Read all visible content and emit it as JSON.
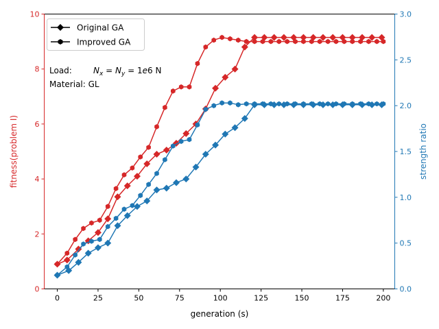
{
  "chart_data": {
    "type": "line",
    "xlabel": "generation (s)",
    "ylabel_left": "fitness(problem I)",
    "ylabel_right": "strength ratio",
    "xlim": [
      -8,
      207
    ],
    "ylim_left": [
      0,
      10
    ],
    "ylim_right": [
      0,
      3
    ],
    "x_ticks": [
      0,
      25,
      50,
      75,
      100,
      125,
      150,
      175,
      200
    ],
    "y_ticks_left": [
      0,
      2,
      4,
      6,
      8,
      10
    ],
    "y_ticks_right": [
      0.0,
      0.5,
      1.0,
      1.5,
      2.0,
      2.5,
      3.0
    ],
    "y_tick_labels_right": [
      "0.0",
      "0.5",
      "1.0",
      "1.5",
      "2.0",
      "2.5",
      "3.0"
    ],
    "colors": {
      "left": "#d62728",
      "right": "#1f77b4",
      "axes": "#000000"
    },
    "legend": {
      "position": "top-left",
      "entries": [
        {
          "label": "Original GA",
          "marker": "diamond"
        },
        {
          "label": "Improved GA",
          "marker": "hexagon"
        }
      ]
    },
    "annotations": {
      "load_prefix": "Load:",
      "load_formula": "N_x = N_y = 1e6 N",
      "load_x": "N",
      "load_sub_x": "x",
      "load_eq1": " = ",
      "load_y": "N",
      "load_sub_y": "y",
      "load_eq2": " = 1",
      "load_e": "e",
      "load_num": "6 N",
      "material": "Material: GL"
    },
    "series": [
      {
        "name": "Original GA",
        "axis": "left",
        "marker": "diamond",
        "x": [
          0,
          6,
          13,
          19,
          25,
          31,
          37,
          43,
          49,
          55,
          61,
          67,
          73,
          79,
          85,
          91,
          97,
          103,
          109,
          115,
          121,
          127,
          133,
          139,
          145,
          151,
          157,
          163,
          169,
          175,
          181,
          187,
          193,
          199
        ],
        "y": [
          0.9,
          1.05,
          1.45,
          1.75,
          2.05,
          2.55,
          3.35,
          3.75,
          4.1,
          4.55,
          4.9,
          5.05,
          5.3,
          5.65,
          6.0,
          6.55,
          7.3,
          7.7,
          8.0,
          8.8,
          9.15,
          9.15,
          9.15,
          9.15,
          9.15,
          9.15,
          9.15,
          9.15,
          9.15,
          9.15,
          9.15,
          9.15,
          9.15,
          9.15
        ]
      },
      {
        "name": "Improved GA",
        "axis": "left",
        "marker": "hexagon",
        "x": [
          0,
          6,
          11,
          16,
          21,
          26,
          31,
          36,
          41,
          46,
          51,
          56,
          61,
          66,
          71,
          76,
          81,
          86,
          91,
          96,
          101,
          106,
          111,
          116,
          121,
          126,
          131,
          136,
          141,
          146,
          151,
          156,
          161,
          166,
          171,
          176,
          181,
          186,
          191,
          196,
          200
        ],
        "y": [
          0.9,
          1.3,
          1.8,
          2.2,
          2.4,
          2.5,
          3.0,
          3.65,
          4.15,
          4.4,
          4.8,
          5.15,
          5.9,
          6.6,
          7.2,
          7.35,
          7.35,
          8.2,
          8.8,
          9.05,
          9.15,
          9.1,
          9.05,
          9.0,
          9.0,
          9.0,
          9.0,
          9.0,
          9.0,
          9.0,
          9.0,
          9.0,
          9.0,
          9.0,
          9.0,
          9.0,
          9.0,
          9.0,
          9.0,
          9.0,
          9.0
        ]
      },
      {
        "name": "Original GA",
        "axis": "right",
        "marker": "diamond",
        "x": [
          0,
          7,
          13,
          19,
          25,
          31,
          37,
          43,
          49,
          55,
          61,
          67,
          73,
          79,
          85,
          91,
          97,
          103,
          109,
          115,
          121,
          127,
          133,
          139,
          145,
          151,
          157,
          163,
          169,
          175,
          181,
          187,
          193,
          199
        ],
        "y": [
          0.15,
          0.2,
          0.29,
          0.39,
          0.45,
          0.5,
          0.69,
          0.8,
          0.9,
          0.96,
          1.08,
          1.1,
          1.16,
          1.2,
          1.33,
          1.47,
          1.57,
          1.69,
          1.76,
          1.86,
          2.01,
          2.01,
          2.01,
          2.01,
          2.01,
          2.01,
          2.01,
          2.01,
          2.01,
          2.01,
          2.01,
          2.01,
          2.01,
          2.01
        ]
      },
      {
        "name": "Improved GA",
        "axis": "right",
        "marker": "hexagon",
        "x": [
          0,
          6,
          11,
          16,
          21,
          26,
          31,
          36,
          41,
          46,
          51,
          56,
          61,
          66,
          71,
          76,
          81,
          86,
          91,
          96,
          101,
          106,
          111,
          116,
          121,
          126,
          131,
          136,
          141,
          146,
          151,
          156,
          161,
          166,
          171,
          176,
          181,
          186,
          191,
          196,
          200
        ],
        "y": [
          0.15,
          0.24,
          0.37,
          0.49,
          0.52,
          0.54,
          0.68,
          0.77,
          0.87,
          0.91,
          1.02,
          1.14,
          1.26,
          1.41,
          1.56,
          1.61,
          1.63,
          1.79,
          1.96,
          2.0,
          2.03,
          2.03,
          2.01,
          2.02,
          2.02,
          2.02,
          2.02,
          2.02,
          2.02,
          2.02,
          2.02,
          2.02,
          2.02,
          2.02,
          2.02,
          2.02,
          2.02,
          2.02,
          2.02,
          2.02,
          2.02
        ]
      }
    ]
  }
}
